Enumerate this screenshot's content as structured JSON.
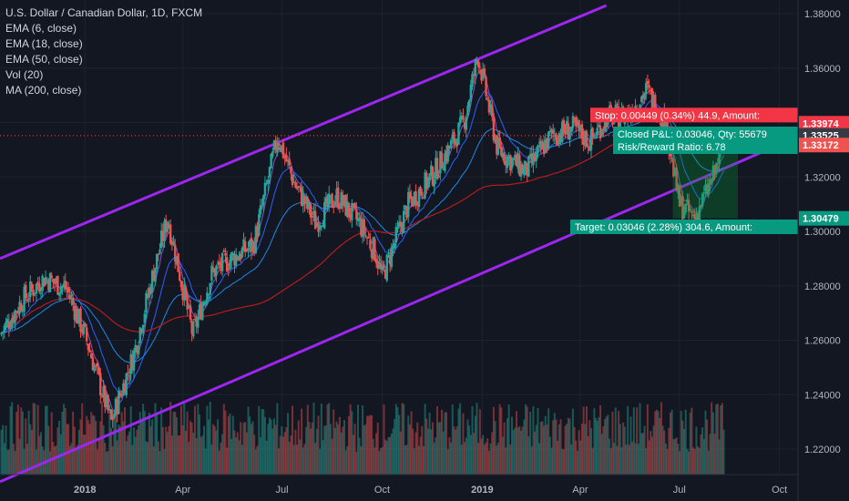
{
  "chart_data": {
    "type": "candlestick",
    "title": "U.S. Dollar / Canadian Dollar, 1D, FXCM",
    "indicators": [
      "EMA (6, close)",
      "EMA (18, close)",
      "EMA (50, close)",
      "Vol (20)",
      "MA (200, close)"
    ],
    "x_ticks": [
      "2018",
      "Apr",
      "Jul",
      "Oct",
      "2019",
      "Apr",
      "Jul",
      "Oct"
    ],
    "y_ticks": [
      "1.38000",
      "1.36000",
      "1.34000",
      "1.32000",
      "1.30000",
      "1.28000",
      "1.26000",
      "1.24000",
      "1.22000"
    ],
    "ylim": [
      1.208,
      1.382
    ],
    "price_tags": {
      "stop": "1.33974",
      "current": "1.33525",
      "last": "1.33172",
      "target": "1.30479"
    },
    "position": {
      "stop_label": "Stop: 0.00449 (0.34%) 44.9, Amount:",
      "closed_pnl_label": "Closed P&L: 0.03046, Qty: 55679",
      "risk_reward_label": "Risk/Reward Ratio: 6.78",
      "target_label": "Target: 0.03046 (2.28%) 304.6, Amount:",
      "entry": 1.3352,
      "stop": 1.33974,
      "target": 1.30479
    },
    "channel": {
      "upper": [
        [
          "2017-10-15",
          1.29
        ],
        [
          "2019-04-25",
          1.383
        ]
      ],
      "lower": [
        [
          "2017-10-15",
          1.208
        ],
        [
          "2019-09-20",
          1.33
        ]
      ]
    },
    "price_path": [
      [
        "2017-10-15",
        1.262
      ],
      [
        "2017-11-05",
        1.275
      ],
      [
        "2017-11-25",
        1.283
      ],
      [
        "2017-12-15",
        1.279
      ],
      [
        "2018-01-01",
        1.262
      ],
      [
        "2018-01-25",
        1.23
      ],
      [
        "2018-02-15",
        1.255
      ],
      [
        "2018-03-05",
        1.285
      ],
      [
        "2018-03-18",
        1.305
      ],
      [
        "2018-04-10",
        1.262
      ],
      [
        "2018-04-28",
        1.285
      ],
      [
        "2018-05-15",
        1.29
      ],
      [
        "2018-06-05",
        1.295
      ],
      [
        "2018-06-27",
        1.335
      ],
      [
        "2018-07-12",
        1.318
      ],
      [
        "2018-08-01",
        1.303
      ],
      [
        "2018-08-20",
        1.313
      ],
      [
        "2018-09-10",
        1.303
      ],
      [
        "2018-09-25",
        1.292
      ],
      [
        "2018-10-01",
        1.283
      ],
      [
        "2018-10-25",
        1.31
      ],
      [
        "2018-11-15",
        1.32
      ],
      [
        "2018-12-01",
        1.33
      ],
      [
        "2018-12-15",
        1.34
      ],
      [
        "2018-12-28",
        1.365
      ],
      [
        "2019-01-15",
        1.33
      ],
      [
        "2019-02-10",
        1.322
      ],
      [
        "2019-03-05",
        1.335
      ],
      [
        "2019-03-25",
        1.338
      ],
      [
        "2019-04-10",
        1.333
      ],
      [
        "2019-04-25",
        1.342
      ],
      [
        "2019-05-15",
        1.343
      ],
      [
        "2019-06-01",
        1.352
      ],
      [
        "2019-06-18",
        1.34
      ],
      [
        "2019-07-01",
        1.31
      ],
      [
        "2019-07-15",
        1.305
      ],
      [
        "2019-08-01",
        1.32
      ],
      [
        "2019-08-07",
        1.327
      ],
      [
        "2019-08-12",
        1.3317
      ]
    ]
  }
}
